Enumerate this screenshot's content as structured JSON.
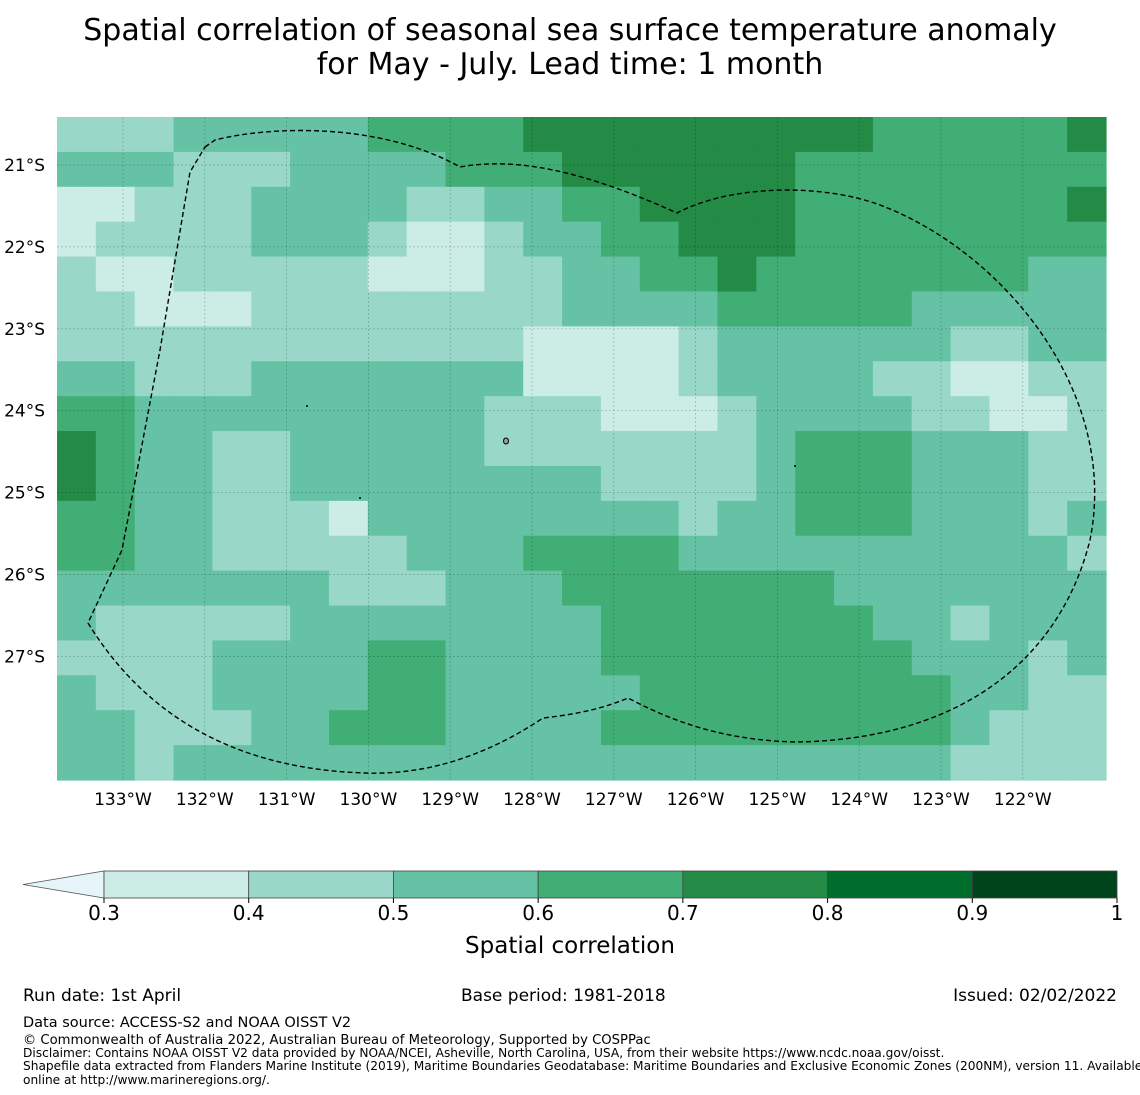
{
  "title": {
    "line1": "Spatial correlation of seasonal sea surface temperature anomaly",
    "line2": "for May - July. Lead time: 1 month"
  },
  "map": {
    "lat_labels": [
      "21°S",
      "22°S",
      "23°S",
      "24°S",
      "25°S",
      "26°S",
      "27°S"
    ],
    "lon_labels": [
      "133°W",
      "132°W",
      "131°W",
      "130°W",
      "129°W",
      "128°W",
      "127°W",
      "126°W",
      "125°W",
      "124°W",
      "123°W",
      "122°W"
    ],
    "boundary_style": "dashed black EEZ outline",
    "grid_levels": [
      [
        1,
        1,
        1,
        2,
        2,
        2,
        2,
        2,
        3,
        3,
        3,
        3,
        4,
        4,
        4,
        4,
        4,
        4,
        4,
        4,
        4,
        3,
        3,
        3,
        3,
        3,
        4
      ],
      [
        2,
        2,
        2,
        1,
        1,
        1,
        2,
        2,
        2,
        2,
        3,
        3,
        3,
        4,
        4,
        4,
        4,
        4,
        4,
        3,
        3,
        3,
        3,
        3,
        3,
        3,
        3
      ],
      [
        0,
        0,
        1,
        1,
        1,
        2,
        2,
        2,
        2,
        1,
        1,
        2,
        2,
        3,
        3,
        4,
        4,
        4,
        4,
        3,
        3,
        3,
        3,
        3,
        3,
        3,
        4
      ],
      [
        0,
        1,
        1,
        1,
        1,
        2,
        2,
        2,
        1,
        0,
        0,
        1,
        2,
        2,
        3,
        3,
        4,
        4,
        4,
        3,
        3,
        3,
        3,
        3,
        3,
        3,
        3
      ],
      [
        1,
        0,
        0,
        1,
        1,
        1,
        1,
        1,
        0,
        0,
        0,
        1,
        1,
        2,
        2,
        3,
        3,
        4,
        3,
        3,
        3,
        3,
        3,
        3,
        3,
        2,
        2
      ],
      [
        1,
        1,
        0,
        0,
        0,
        1,
        1,
        1,
        1,
        1,
        1,
        1,
        1,
        2,
        2,
        2,
        2,
        3,
        3,
        3,
        3,
        3,
        2,
        2,
        2,
        2,
        2
      ],
      [
        1,
        1,
        1,
        1,
        1,
        1,
        1,
        1,
        1,
        1,
        1,
        1,
        0,
        0,
        0,
        0,
        1,
        2,
        2,
        2,
        2,
        2,
        2,
        1,
        1,
        2,
        2
      ],
      [
        2,
        2,
        1,
        1,
        1,
        2,
        2,
        2,
        2,
        2,
        2,
        2,
        0,
        0,
        0,
        0,
        1,
        2,
        2,
        2,
        2,
        1,
        1,
        0,
        0,
        1,
        1
      ],
      [
        3,
        3,
        2,
        2,
        2,
        2,
        2,
        2,
        2,
        2,
        2,
        1,
        1,
        1,
        0,
        0,
        0,
        1,
        2,
        2,
        2,
        2,
        1,
        1,
        0,
        0,
        1
      ],
      [
        4,
        3,
        2,
        2,
        1,
        1,
        2,
        2,
        2,
        2,
        2,
        1,
        1,
        1,
        1,
        1,
        1,
        1,
        2,
        3,
        3,
        3,
        2,
        2,
        2,
        1,
        1
      ],
      [
        4,
        3,
        2,
        2,
        1,
        1,
        2,
        2,
        2,
        2,
        2,
        2,
        2,
        2,
        1,
        1,
        1,
        1,
        2,
        3,
        3,
        3,
        2,
        2,
        2,
        1,
        1
      ],
      [
        3,
        3,
        2,
        2,
        1,
        1,
        1,
        0,
        2,
        2,
        2,
        2,
        2,
        2,
        2,
        2,
        1,
        2,
        2,
        3,
        3,
        3,
        2,
        2,
        2,
        1,
        2
      ],
      [
        3,
        3,
        2,
        2,
        1,
        1,
        1,
        1,
        1,
        2,
        2,
        2,
        3,
        3,
        3,
        3,
        2,
        2,
        2,
        2,
        2,
        2,
        2,
        2,
        2,
        2,
        1
      ],
      [
        2,
        2,
        2,
        2,
        2,
        2,
        2,
        1,
        1,
        1,
        2,
        2,
        2,
        3,
        3,
        3,
        3,
        3,
        3,
        3,
        2,
        2,
        2,
        2,
        2,
        2,
        2
      ],
      [
        2,
        1,
        1,
        1,
        1,
        1,
        2,
        2,
        2,
        2,
        2,
        2,
        2,
        2,
        3,
        3,
        3,
        3,
        3,
        3,
        3,
        2,
        2,
        1,
        2,
        2,
        2
      ],
      [
        1,
        1,
        1,
        1,
        2,
        2,
        2,
        2,
        3,
        3,
        2,
        2,
        2,
        2,
        3,
        3,
        3,
        3,
        3,
        3,
        3,
        3,
        2,
        2,
        2,
        1,
        2
      ],
      [
        2,
        1,
        1,
        1,
        2,
        2,
        2,
        2,
        3,
        3,
        2,
        2,
        2,
        2,
        2,
        3,
        3,
        3,
        3,
        3,
        3,
        3,
        3,
        2,
        2,
        1,
        1
      ],
      [
        2,
        2,
        1,
        1,
        1,
        2,
        2,
        3,
        3,
        3,
        2,
        2,
        2,
        2,
        3,
        3,
        3,
        3,
        3,
        3,
        3,
        3,
        3,
        2,
        1,
        1,
        1
      ],
      [
        2,
        2,
        1,
        2,
        2,
        2,
        2,
        2,
        2,
        2,
        2,
        2,
        2,
        2,
        2,
        2,
        2,
        2,
        2,
        2,
        2,
        2,
        2,
        1,
        1,
        1,
        1
      ]
    ]
  },
  "colorbar": {
    "label": "Spatial correlation",
    "ticks": [
      "0.3",
      "0.4",
      "0.5",
      "0.6",
      "0.7",
      "0.8",
      "0.9",
      "1"
    ],
    "colors": [
      "#ccece6",
      "#99d8c9",
      "#66c2a4",
      "#41ae76",
      "#238b45",
      "#006d2c",
      "#00441b"
    ],
    "under_color": "#e5f5f9"
  },
  "footer": {
    "run_date": "Run date: 1st April",
    "base_period": "Base period: 1981-2018",
    "issued": "Issued: 02/02/2022",
    "data_source": "Data source: ACCESS-S2 and NOAA OISST V2",
    "copyright": "© Commonwealth of Australia 2022, Australian Bureau of Meteorology, Supported by COSPPac",
    "disclaimer": "Disclaimer: Contains NOAA OISST V2 data provided by NOAA/NCEI, Asheville, North Carolina, USA, from their website https://www.ncdc.noaa.gov/oisst.",
    "shapefile_line1": "Shapefile data extracted from Flanders Marine Institute (2019), Maritime Boundaries Geodatabase: Maritime Boundaries and Exclusive Economic Zones (200NM), version 11. Available",
    "shapefile_line2": "online at http://www.marineregions.org/."
  }
}
